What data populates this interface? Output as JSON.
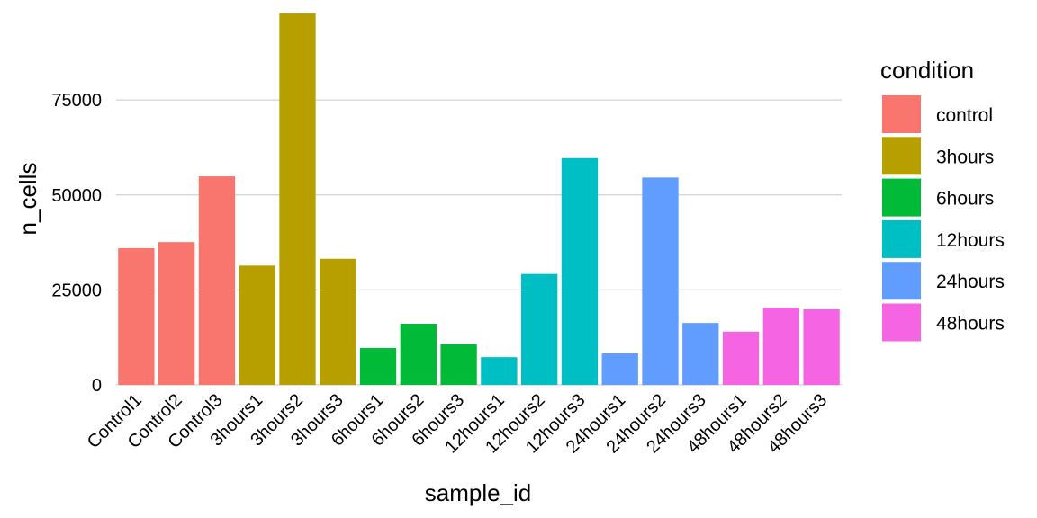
{
  "chart_data": {
    "type": "bar",
    "title": "",
    "xlabel": "sample_id",
    "ylabel": "n_cells",
    "ylim": [
      0,
      98000
    ],
    "yticks": [
      0,
      25000,
      50000,
      75000
    ],
    "ytick_labels": [
      "0",
      "25000",
      "50000",
      "75000"
    ],
    "grid": true,
    "legend_position": "right",
    "legend_title": "condition",
    "categories": [
      "Control1",
      "Control2",
      "Control3",
      "3hours1",
      "3hours2",
      "3hours3",
      "6hours1",
      "6hours2",
      "6hours3",
      "12hours1",
      "12hours2",
      "12hours3",
      "24hours1",
      "24hours2",
      "24hours3",
      "48hours1",
      "48hours2",
      "48hours3"
    ],
    "values": [
      36000,
      37600,
      54900,
      31400,
      97800,
      33200,
      9700,
      16100,
      10700,
      7300,
      29200,
      59700,
      8300,
      54600,
      16300,
      14000,
      20300,
      19900
    ],
    "group": [
      "control",
      "control",
      "control",
      "3hours",
      "3hours",
      "3hours",
      "6hours",
      "6hours",
      "6hours",
      "12hours",
      "12hours",
      "12hours",
      "24hours",
      "24hours",
      "24hours",
      "48hours",
      "48hours",
      "48hours"
    ],
    "legend": [
      {
        "label": "control",
        "color": "#F8766D"
      },
      {
        "label": "3hours",
        "color": "#B79F00"
      },
      {
        "label": "6hours",
        "color": "#00BA38"
      },
      {
        "label": "12hours",
        "color": "#00BFC4"
      },
      {
        "label": "24hours",
        "color": "#619CFF"
      },
      {
        "label": "48hours",
        "color": "#F564E3"
      }
    ]
  }
}
